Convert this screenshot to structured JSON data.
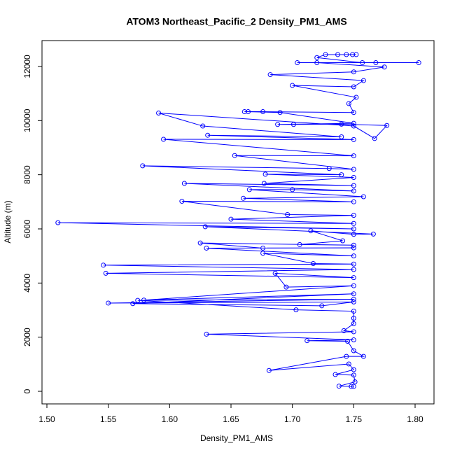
{
  "chart_data": {
    "type": "scatter",
    "title": "ATOM3 Northeast_Pacific_2 Density_PM1_AMS",
    "x_label": "Density_PM1_AMS",
    "y_label": "Altitude (m)",
    "xlim": [
      1.496,
      1.8154
    ],
    "ylim": [
      -465,
      12956
    ],
    "xticks": [
      {
        "value": 1.5,
        "label": "1.50"
      },
      {
        "value": 1.55,
        "label": "1.55"
      },
      {
        "value": 1.6,
        "label": "1.60"
      },
      {
        "value": 1.65,
        "label": "1.65"
      },
      {
        "value": 1.7,
        "label": "1.70"
      },
      {
        "value": 1.75,
        "label": "1.75"
      },
      {
        "value": 1.8,
        "label": "1.80"
      }
    ],
    "yticks": [
      0,
      2000,
      4000,
      6000,
      8000,
      10000,
      12000
    ],
    "series": [
      {
        "color": "#0000ff",
        "x": [
          1.75,
          1.748,
          1.738,
          1.751,
          1.75,
          1.735,
          1.75,
          1.746,
          1.681,
          1.744,
          1.758,
          1.75,
          1.745,
          1.712,
          1.75,
          1.63,
          1.75,
          1.742,
          1.75,
          1.75,
          1.75,
          1.703,
          1.574,
          1.75,
          1.55,
          1.75,
          1.724,
          1.57,
          1.75,
          1.579,
          1.75,
          1.695,
          1.686,
          1.75,
          1.548,
          1.75,
          1.546,
          1.75,
          1.717,
          1.676,
          1.75,
          1.63,
          1.75,
          1.676,
          1.625,
          1.75,
          1.706,
          1.741,
          1.715,
          1.75,
          1.766,
          1.629,
          1.75,
          1.509,
          1.75,
          1.65,
          1.75,
          1.696,
          1.61,
          1.75,
          1.66,
          1.758,
          1.665,
          1.7,
          1.75,
          1.612,
          1.75,
          1.677,
          1.75,
          1.678,
          1.74,
          1.578,
          1.73,
          1.75,
          1.653,
          1.75,
          1.595,
          1.75,
          1.631,
          1.74,
          1.627,
          1.591,
          1.75,
          1.767,
          1.777,
          1.74,
          1.701,
          1.688,
          1.75,
          1.69,
          1.661,
          1.664,
          1.676,
          1.75,
          1.746,
          1.752,
          1.7,
          1.75,
          1.758,
          1.682,
          1.75,
          1.775,
          1.72,
          1.704,
          1.803,
          1.768,
          1.757,
          1.72,
          1.727,
          1.737,
          1.744,
          1.749,
          1.752
        ],
        "values": [
          180,
          180,
          190,
          350,
          600,
          620,
          800,
          1010,
          770,
          1290,
          1290,
          1500,
          1850,
          1870,
          1900,
          2110,
          2200,
          2240,
          2500,
          2700,
          2960,
          3010,
          3360,
          3400,
          3260,
          3300,
          3160,
          3240,
          3600,
          3370,
          3900,
          3850,
          4360,
          4200,
          4360,
          4500,
          4660,
          4700,
          4720,
          5100,
          5000,
          5290,
          5300,
          5290,
          5480,
          5400,
          5420,
          5560,
          5930,
          5800,
          5810,
          6080,
          6000,
          6230,
          6200,
          6360,
          6500,
          6530,
          7020,
          7000,
          7130,
          7190,
          7450,
          7450,
          7400,
          7680,
          7600,
          7680,
          7900,
          8020,
          8000,
          8330,
          8230,
          8200,
          8710,
          8700,
          9310,
          9300,
          9460,
          9400,
          9800,
          10280,
          9800,
          9340,
          9820,
          9870,
          9860,
          9860,
          9900,
          10300,
          10330,
          10330,
          10330,
          10300,
          10630,
          10860,
          11300,
          11250,
          11480,
          11700,
          11800,
          11980,
          12140,
          12140,
          12140,
          12140,
          12140,
          12330,
          12440,
          12440,
          12440,
          12440,
          12440
        ]
      }
    ]
  }
}
